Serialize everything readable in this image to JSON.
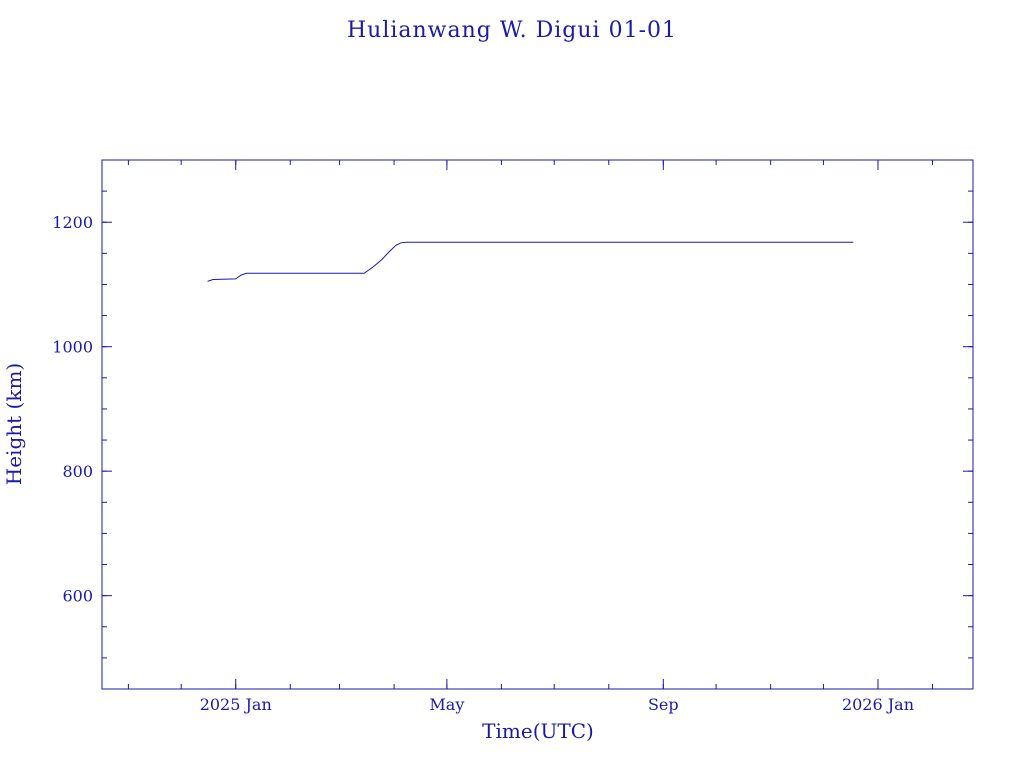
{
  "chart_data": {
    "type": "line",
    "title": "Hulianwang W. Digui 01-01",
    "xlabel": "Time(UTC)",
    "ylabel": "Height (km)",
    "xlim": [
      "2024-10-17",
      "2026-02-24"
    ],
    "ylim": [
      450,
      1300
    ],
    "x_ticks": [
      {
        "date": "2025-01-01",
        "label": "2025 Jan"
      },
      {
        "date": "2025-05-01",
        "label": "May"
      },
      {
        "date": "2025-09-01",
        "label": "Sep"
      },
      {
        "date": "2026-01-01",
        "label": "2026 Jan"
      }
    ],
    "x_minor_ticks": [
      "2024-11-01",
      "2024-12-01",
      "2025-01-01",
      "2025-02-01",
      "2025-03-01",
      "2025-04-01",
      "2025-05-01",
      "2025-06-01",
      "2025-07-01",
      "2025-08-01",
      "2025-09-01",
      "2025-10-01",
      "2025-11-01",
      "2025-12-01",
      "2026-01-01",
      "2026-02-01"
    ],
    "y_ticks": [
      600,
      800,
      1000,
      1200
    ],
    "y_minor_step": 50,
    "grid": false,
    "series": [
      {
        "color": "#1a1aa6",
        "points": [
          {
            "x": "2024-12-16",
            "y": 1105
          },
          {
            "x": "2024-12-19",
            "y": 1108
          },
          {
            "x": "2025-01-01",
            "y": 1109
          },
          {
            "x": "2025-01-04",
            "y": 1115
          },
          {
            "x": "2025-01-07",
            "y": 1118
          },
          {
            "x": "2025-03-15",
            "y": 1118
          },
          {
            "x": "2025-03-20",
            "y": 1128
          },
          {
            "x": "2025-03-25",
            "y": 1140
          },
          {
            "x": "2025-03-29",
            "y": 1152
          },
          {
            "x": "2025-04-02",
            "y": 1163
          },
          {
            "x": "2025-04-05",
            "y": 1167
          },
          {
            "x": "2025-04-08",
            "y": 1168
          },
          {
            "x": "2025-12-18",
            "y": 1168
          }
        ]
      }
    ]
  }
}
